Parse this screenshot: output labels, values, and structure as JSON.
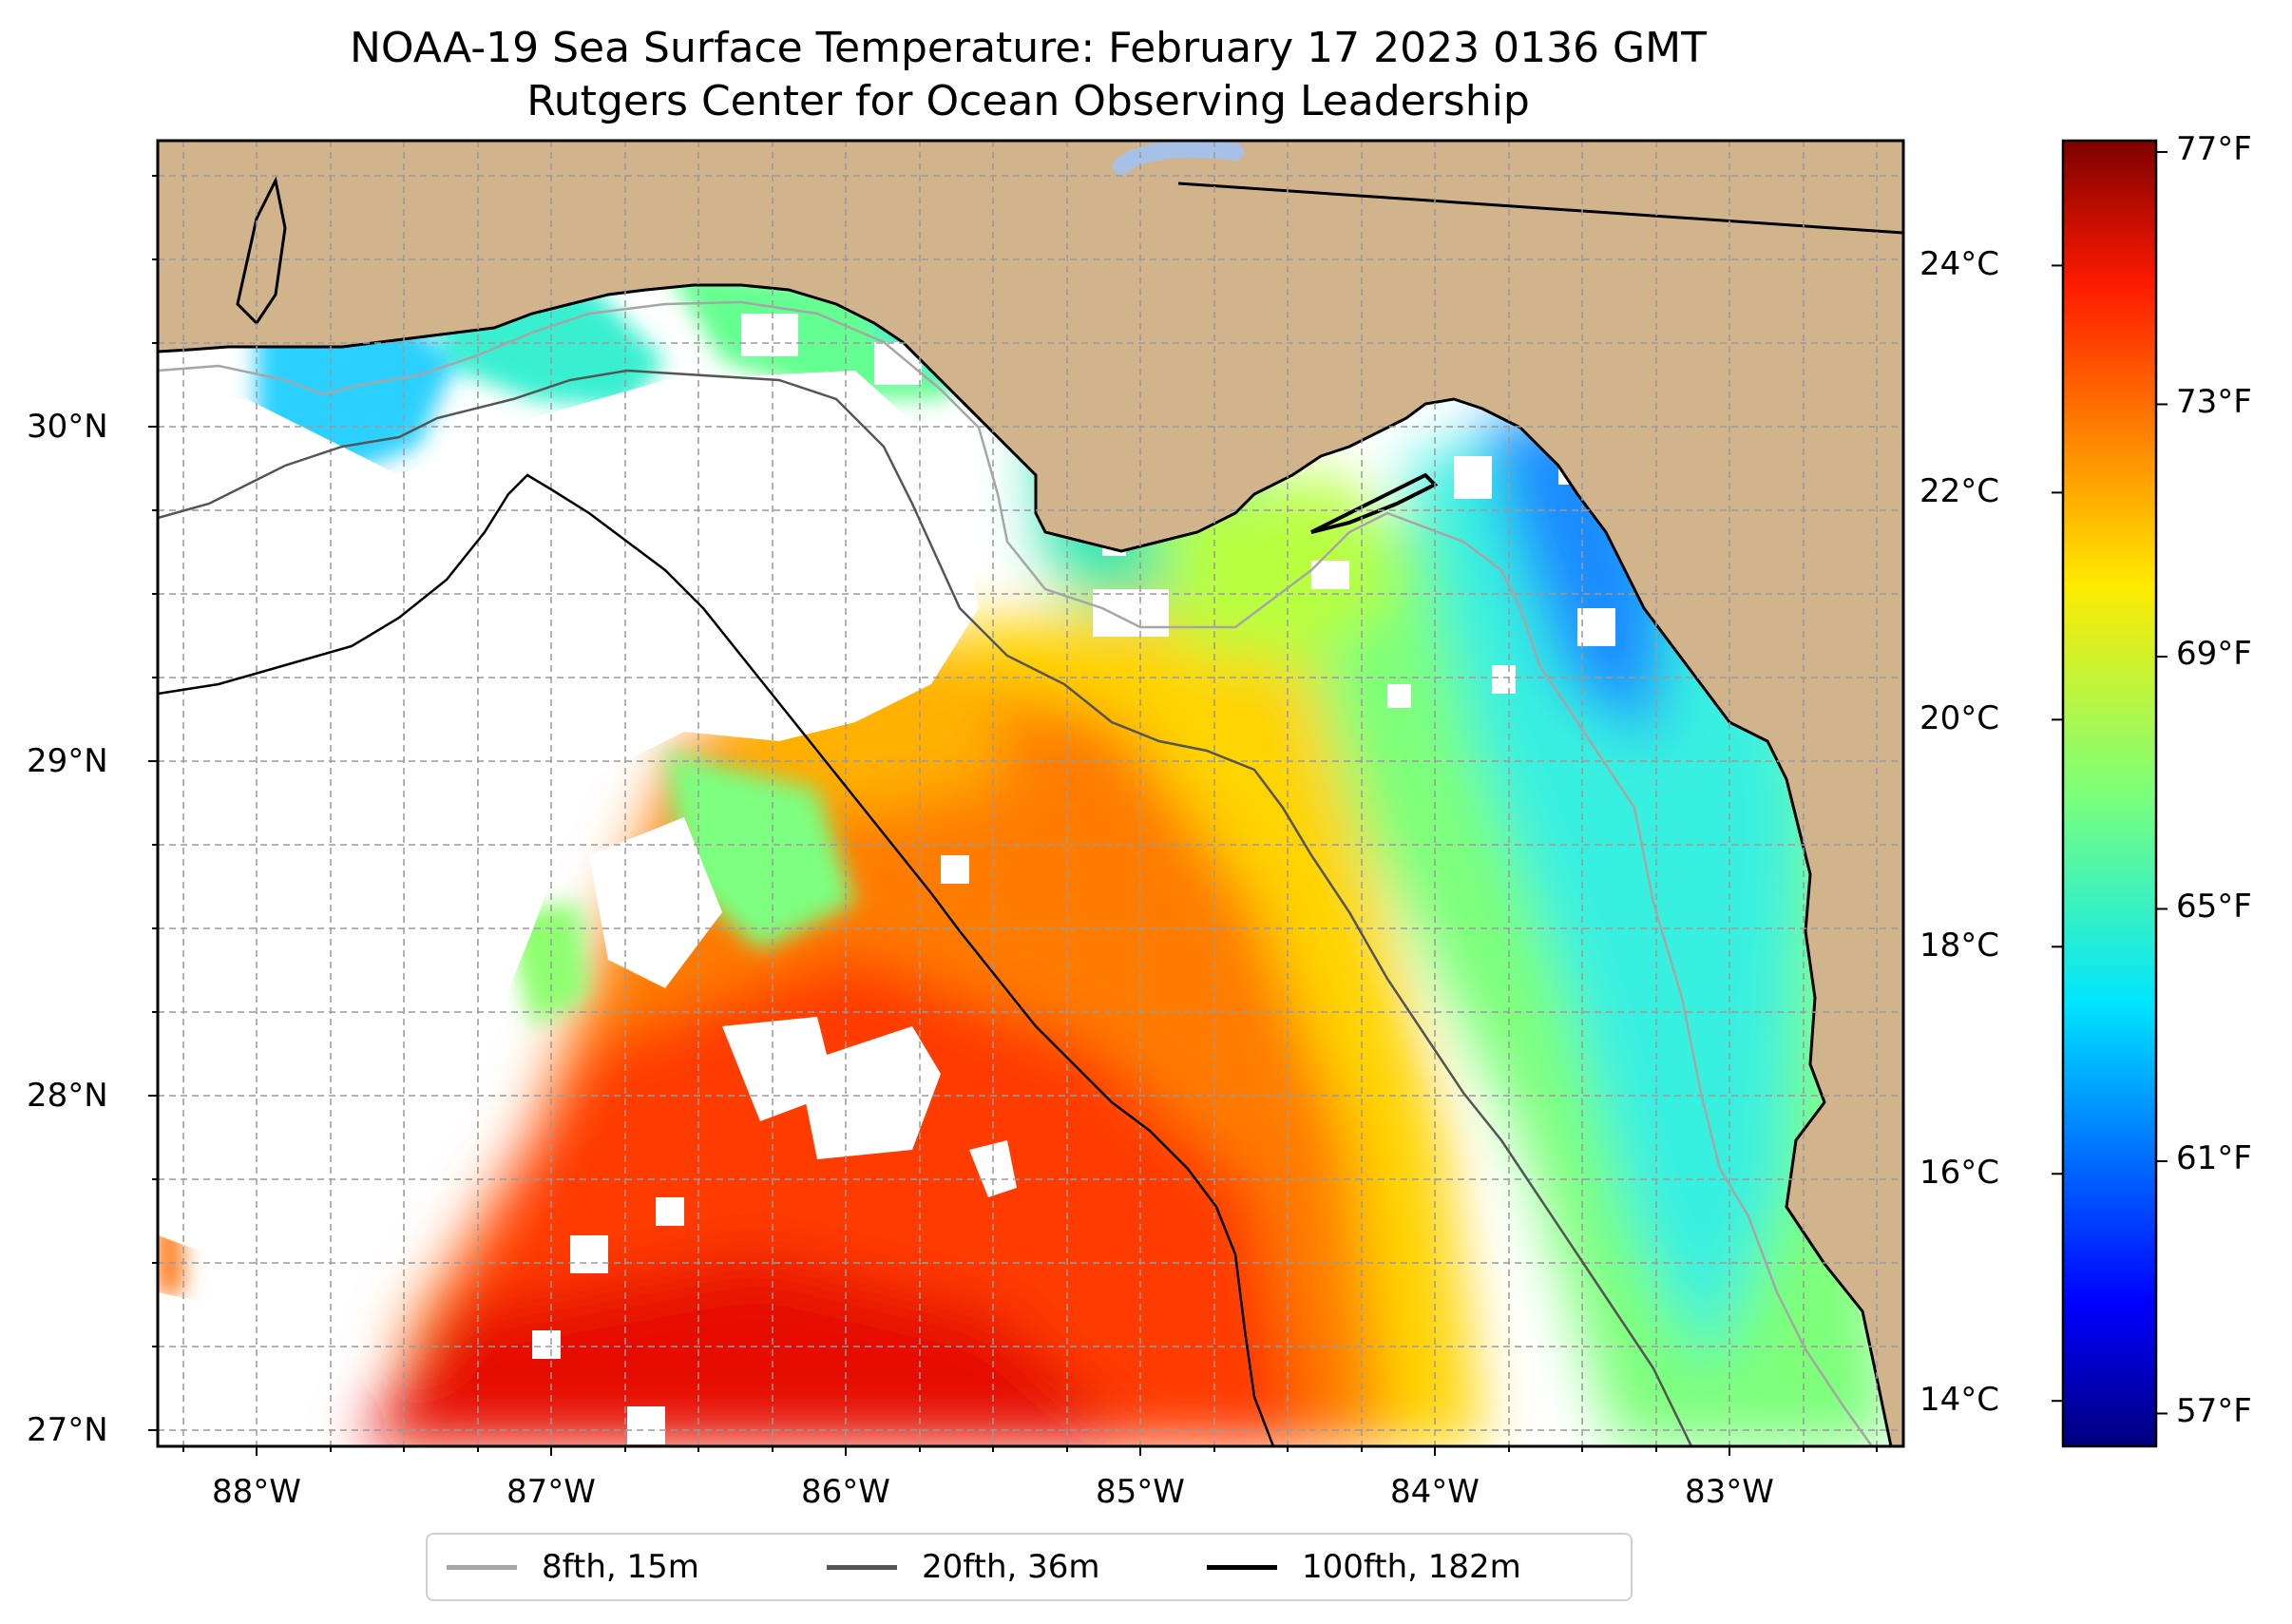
{
  "title": {
    "line1": "NOAA-19 Sea Surface Temperature: February 17 2023 0136 GMT",
    "line2": "Rutgers Center for Ocean Observing Leadership"
  },
  "map_axes": {
    "lat_ticks": [
      {
        "value": 30,
        "label": "30°N"
      },
      {
        "value": 29,
        "label": "29°N"
      },
      {
        "value": 28,
        "label": "28°N"
      },
      {
        "value": 27,
        "label": "27°N"
      }
    ],
    "lon_ticks": [
      {
        "value": -88,
        "label": "88°W"
      },
      {
        "value": -87,
        "label": "87°W"
      },
      {
        "value": -86,
        "label": "86°W"
      },
      {
        "value": -85,
        "label": "85°W"
      },
      {
        "value": -84,
        "label": "84°W"
      },
      {
        "value": -83,
        "label": "83°W"
      }
    ],
    "lat_range": [
      26.94,
      30.85
    ],
    "lon_range": [
      -88.33,
      -82.4
    ],
    "grid": true
  },
  "colorbar": {
    "colormap": "jet",
    "celsius_range": [
      13.6,
      25.1
    ],
    "celsius_ticks": [
      {
        "value": 24,
        "label": "24°C"
      },
      {
        "value": 22,
        "label": "22°C"
      },
      {
        "value": 20,
        "label": "20°C"
      },
      {
        "value": 18,
        "label": "18°C"
      },
      {
        "value": 16,
        "label": "16°C"
      },
      {
        "value": 14,
        "label": "14°C"
      }
    ],
    "fahrenheit_ticks": [
      {
        "value": 77,
        "label": "77°F"
      },
      {
        "value": 73,
        "label": "73°F"
      },
      {
        "value": 69,
        "label": "69°F"
      },
      {
        "value": 65,
        "label": "65°F"
      },
      {
        "value": 61,
        "label": "61°F"
      },
      {
        "value": 57,
        "label": "57°F"
      }
    ]
  },
  "legend": {
    "placement": "bottom-center",
    "entries": [
      {
        "label": "8fth, 15m",
        "color": "#a6a6a6"
      },
      {
        "label": "20fth, 36m",
        "color": "#555555"
      },
      {
        "label": "100fth, 182m",
        "color": "#000000"
      }
    ]
  },
  "colors": {
    "land": "#d2b48c",
    "no_data": "#ffffff",
    "lake": "#a6c0e8"
  }
}
